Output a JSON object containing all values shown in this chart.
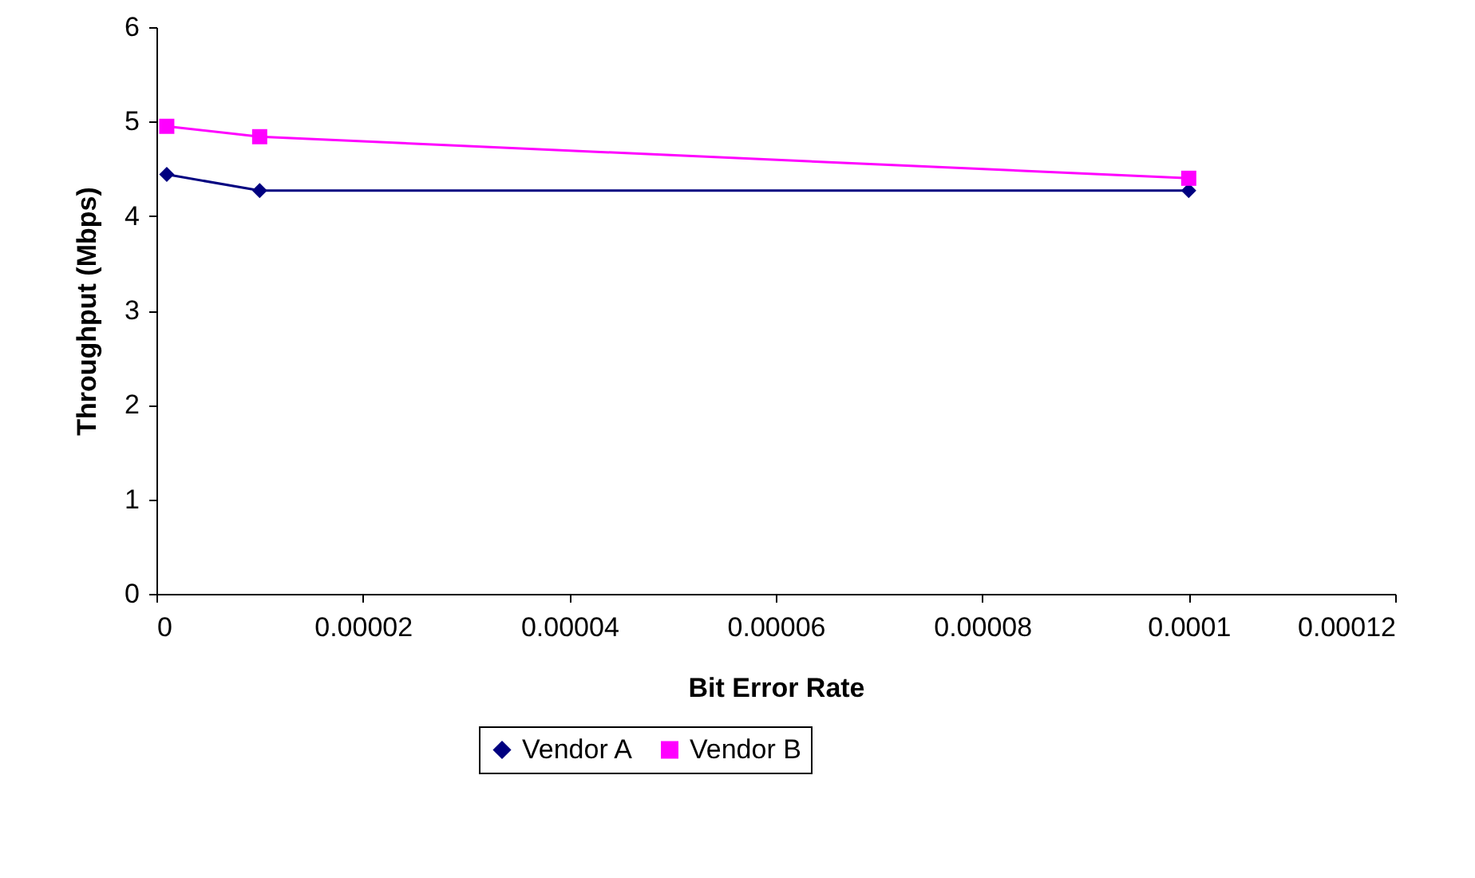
{
  "chart_data": {
    "type": "line",
    "xlabel": "Bit Error Rate",
    "ylabel": "Throughput (Mbps)",
    "x": [
      1e-06,
      1e-05,
      0.0001
    ],
    "series": [
      {
        "name": "Vendor A",
        "color": "#000080",
        "marker": "diamond",
        "values": [
          4.44,
          4.27,
          4.27
        ]
      },
      {
        "name": "Vendor B",
        "color": "#ff00ff",
        "marker": "square",
        "values": [
          4.95,
          4.84,
          4.4
        ]
      }
    ],
    "xlim": [
      0,
      0.00012
    ],
    "xticks": [
      0,
      {
        "value": 2e-05,
        "label": "0.00002"
      },
      {
        "value": 4e-05,
        "label": "0.00004"
      },
      {
        "value": 6e-05,
        "label": "0.00006"
      },
      {
        "value": 8e-05,
        "label": "0.00008"
      },
      0.0001,
      0.00012
    ],
    "ylim": [
      0,
      6
    ],
    "yticks": [
      0,
      1,
      2,
      3,
      4,
      5,
      6
    ],
    "grid": false,
    "legend": "bottom",
    "line_style": "solid"
  }
}
